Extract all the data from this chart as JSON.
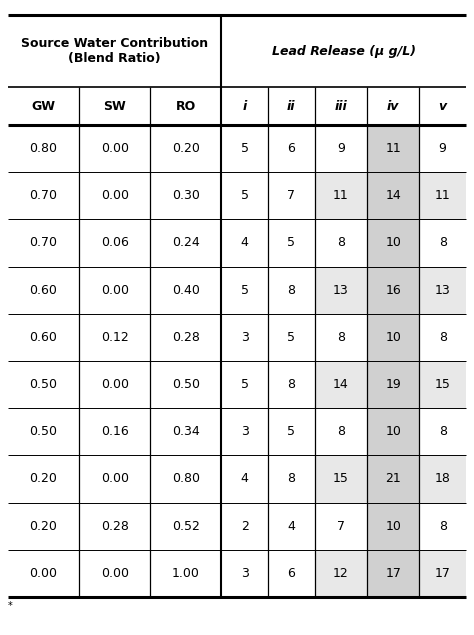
{
  "header1_left": "Source Water Contribution\n(Blend Ratio)",
  "header1_right": "Lead Release (μ g/L)",
  "col_headers": [
    "GW",
    "SW",
    "RO",
    "i",
    "ii",
    "iii",
    "iv",
    "v"
  ],
  "rows": [
    [
      "0.80",
      "0.00",
      "0.20",
      "5",
      "6",
      "9",
      "11",
      "9"
    ],
    [
      "0.70",
      "0.00",
      "0.30",
      "5",
      "7",
      "11",
      "14",
      "11"
    ],
    [
      "0.70",
      "0.06",
      "0.24",
      "4",
      "5",
      "8",
      "10",
      "8"
    ],
    [
      "0.60",
      "0.00",
      "0.40",
      "5",
      "8",
      "13",
      "16",
      "13"
    ],
    [
      "0.60",
      "0.12",
      "0.28",
      "3",
      "5",
      "8",
      "10",
      "8"
    ],
    [
      "0.50",
      "0.00",
      "0.50",
      "5",
      "8",
      "14",
      "19",
      "15"
    ],
    [
      "0.50",
      "0.16",
      "0.34",
      "3",
      "5",
      "8",
      "10",
      "8"
    ],
    [
      "0.20",
      "0.00",
      "0.80",
      "4",
      "8",
      "15",
      "21",
      "18"
    ],
    [
      "0.20",
      "0.28",
      "0.52",
      "2",
      "4",
      "7",
      "10",
      "8"
    ],
    [
      "0.00",
      "0.00",
      "1.00",
      "3",
      "6",
      "12",
      "17",
      "17"
    ]
  ],
  "shaded_cols_per_row": [
    [
      6
    ],
    [
      5,
      6,
      7
    ],
    [
      6
    ],
    [
      5,
      6,
      7
    ],
    [
      6
    ],
    [
      5,
      6,
      7
    ],
    [
      6
    ],
    [
      5,
      6,
      7
    ],
    [
      6
    ],
    [
      5,
      6,
      7
    ]
  ],
  "shade_color_light": "#e8e8e8",
  "shade_color_dark": "#d0d0d0",
  "bg_color": "#ffffff",
  "border_color": "#000000",
  "footnote": "*"
}
